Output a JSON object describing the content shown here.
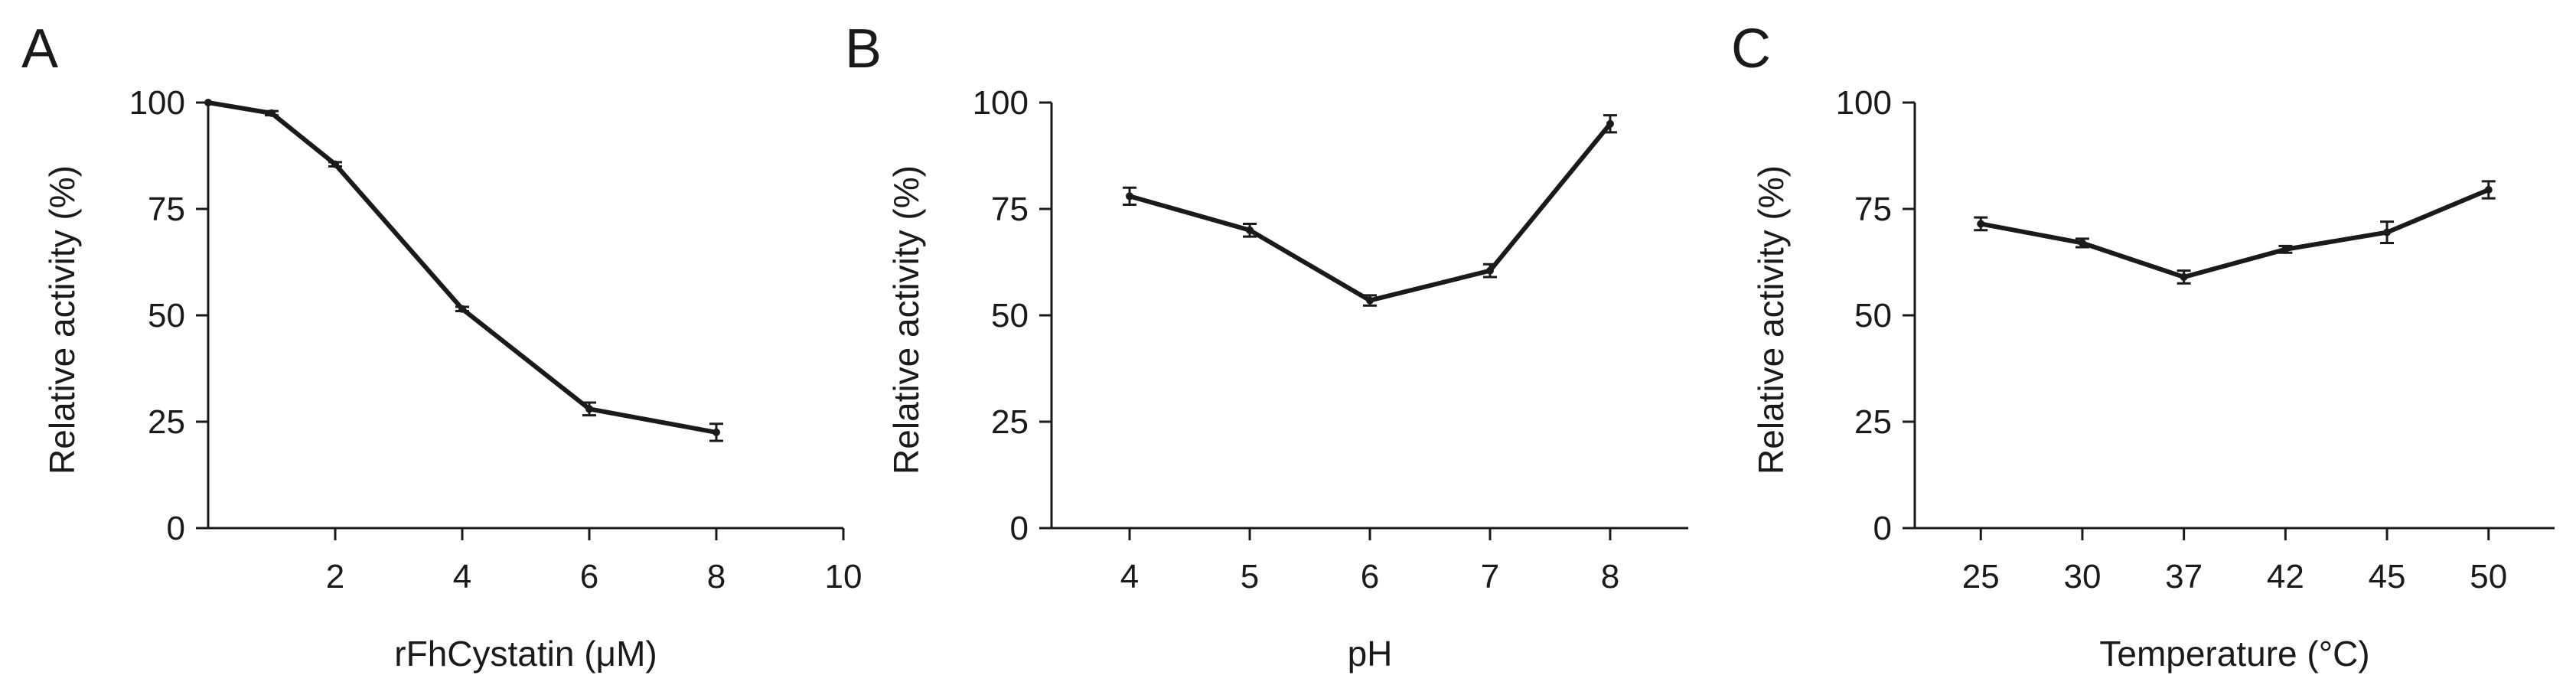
{
  "chart_data": [
    {
      "panel": "A",
      "type": "line",
      "xlabel": "rFhCystatin (μM)",
      "ylabel": "Relative activity (%)",
      "x_scale": "linear",
      "xlim": [
        0,
        10
      ],
      "ylim": [
        0,
        100
      ],
      "xticks": [
        "2",
        "4",
        "6",
        "8",
        "10"
      ],
      "yticks": [
        "0",
        "25",
        "50",
        "75",
        "100"
      ],
      "series": [
        {
          "x": [
            0,
            1,
            2,
            4,
            6,
            8
          ],
          "y": [
            100,
            97.5,
            85.5,
            51.5,
            28,
            22.5
          ],
          "err": [
            0,
            0.5,
            0.5,
            0.5,
            1.5,
            2
          ]
        }
      ]
    },
    {
      "panel": "B",
      "type": "line",
      "xlabel": "pH",
      "ylabel": "Relative activity (%)",
      "x_scale": "category",
      "ylim": [
        0,
        100
      ],
      "categories": [
        "4",
        "5",
        "6",
        "7",
        "8"
      ],
      "yticks": [
        "0",
        "25",
        "50",
        "75",
        "100"
      ],
      "series": [
        {
          "values": [
            78,
            70,
            53.5,
            60.5,
            95
          ],
          "err": [
            2,
            1.5,
            1.2,
            1.5,
            2
          ]
        }
      ]
    },
    {
      "panel": "C",
      "type": "line",
      "xlabel": "Temperature (°C)",
      "ylabel": "Relative activity (%)",
      "x_scale": "category",
      "ylim": [
        0,
        100
      ],
      "categories": [
        "25",
        "30",
        "37",
        "42",
        "45",
        "50"
      ],
      "yticks": [
        "0",
        "25",
        "50",
        "75",
        "100"
      ],
      "series": [
        {
          "values": [
            71.5,
            67,
            59,
            65.5,
            69.5,
            79.5
          ],
          "err": [
            1.5,
            1,
            1.5,
            0.8,
            2.5,
            2
          ]
        }
      ]
    }
  ]
}
